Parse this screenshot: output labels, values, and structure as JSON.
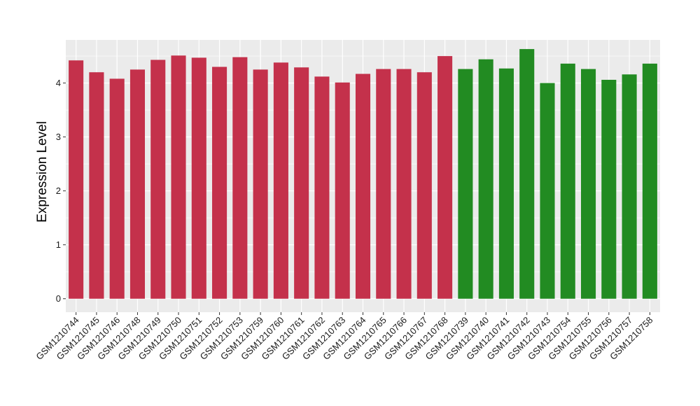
{
  "chart_data": {
    "type": "bar",
    "title": "",
    "xlabel": "",
    "ylabel": "Expression Level",
    "ylim": [
      -0.25,
      4.8
    ],
    "yticks": [
      0,
      1,
      2,
      3,
      4
    ],
    "grid": true,
    "panel_background": "#EBEBEB",
    "grid_color": "#FFFFFF",
    "categories": [
      "GSM1210744",
      "GSM1210745",
      "GSM1210746",
      "GSM1210748",
      "GSM1210749",
      "GSM1210750",
      "GSM1210751",
      "GSM1210752",
      "GSM1210753",
      "GSM1210759",
      "GSM1210760",
      "GSM1210761",
      "GSM1210762",
      "GSM1210763",
      "GSM1210764",
      "GSM1210765",
      "GSM1210766",
      "GSM1210767",
      "GSM1210768",
      "GSM1210739",
      "GSM1210740",
      "GSM1210741",
      "GSM1210742",
      "GSM1210743",
      "GSM1210754",
      "GSM1210755",
      "GSM1210756",
      "GSM1210757",
      "GSM1210758"
    ],
    "values": [
      4.42,
      4.2,
      4.08,
      4.25,
      4.43,
      4.51,
      4.47,
      4.3,
      4.48,
      4.25,
      4.38,
      4.29,
      4.12,
      4.01,
      4.17,
      4.26,
      4.26,
      4.2,
      4.5,
      4.26,
      4.44,
      4.27,
      4.63,
      4.0,
      4.36,
      4.26,
      4.06,
      4.16,
      4.36
    ],
    "bar_colors": [
      "#C4314B",
      "#C4314B",
      "#C4314B",
      "#C4314B",
      "#C4314B",
      "#C4314B",
      "#C4314B",
      "#C4314B",
      "#C4314B",
      "#C4314B",
      "#C4314B",
      "#C4314B",
      "#C4314B",
      "#C4314B",
      "#C4314B",
      "#C4314B",
      "#C4314B",
      "#C4314B",
      "#C4314B",
      "#228B22",
      "#228B22",
      "#228B22",
      "#228B22",
      "#228B22",
      "#228B22",
      "#228B22",
      "#228B22",
      "#228B22",
      "#228B22"
    ]
  }
}
